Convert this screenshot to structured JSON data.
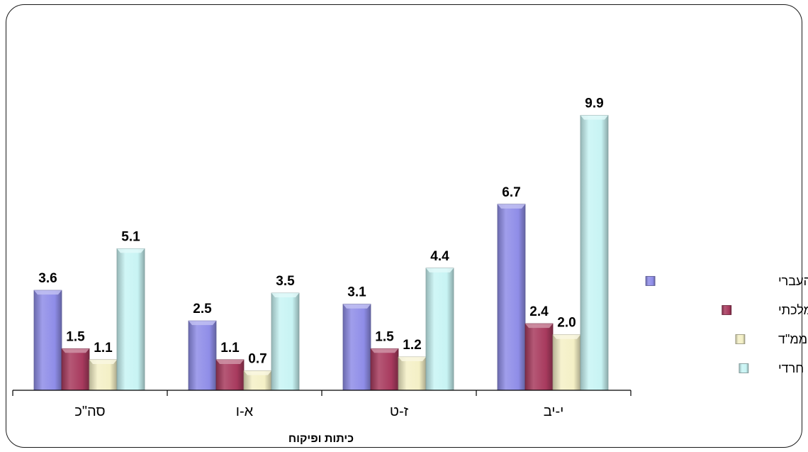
{
  "chart_data": {
    "type": "bar",
    "title": "",
    "xlabel": "כיתות ופיקוח",
    "ylabel": "",
    "categories": [
      "סה\"כ",
      "א-ו",
      "ז-ט",
      "י-יב"
    ],
    "series": [
      {
        "name": "תלמידים  במגזר העברי",
        "values": [
          3.6,
          2.5,
          3.1,
          6.7
        ],
        "color": "#8f8de8"
      },
      {
        "name": "ממלכתי",
        "values": [
          1.5,
          1.1,
          1.5,
          2.4
        ],
        "color": "#a83a5e"
      },
      {
        "name": "ממ\"ד",
        "values": [
          1.1,
          0.7,
          1.2,
          2.0
        ],
        "color": "#f4f0c6"
      },
      {
        "name": "חרדי",
        "values": [
          5.1,
          3.5,
          4.4,
          9.9
        ],
        "color": "#c8f4f4"
      }
    ],
    "labels": [
      [
        "3.6",
        "2.5",
        "3.1",
        "6.7"
      ],
      [
        "1.5",
        "1.1",
        "1.5",
        "2.4"
      ],
      [
        "1.1",
        "0.7",
        "1.2",
        "2.0"
      ],
      [
        "5.1",
        "3.5",
        "4.4",
        "9.9"
      ]
    ],
    "ylim": [
      0,
      11.5
    ],
    "legend_position": "right",
    "grid": false
  }
}
